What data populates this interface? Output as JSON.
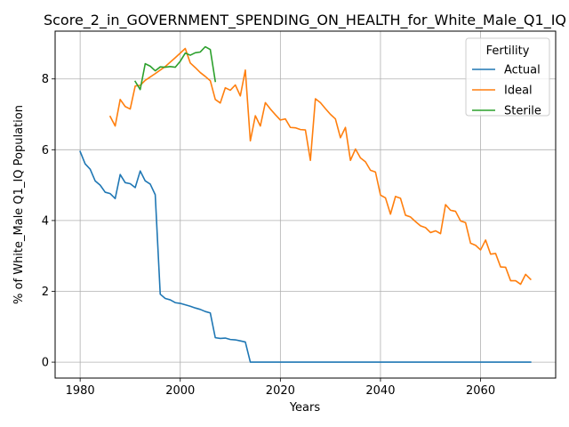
{
  "chart_data": {
    "type": "line",
    "title": "Score_2_in_GOVERNMENT_SPENDING_ON_HEALTH_for_White_Male_Q1_IQ",
    "xlabel": "Years",
    "ylabel": "% of White_Male Q1_IQ Population",
    "xlim": [
      1975,
      2075
    ],
    "ylim": [
      -0.45,
      9.35
    ],
    "xticks": [
      1980,
      2000,
      2020,
      2040,
      2060
    ],
    "yticks": [
      0,
      2,
      4,
      6,
      8
    ],
    "grid": true,
    "legend": {
      "title": "Fertility",
      "placement": "top-right"
    },
    "series": [
      {
        "name": "Actual",
        "color": "#1f77b4",
        "points": [
          [
            1980,
            5.95
          ],
          [
            1981,
            5.6
          ],
          [
            1982,
            5.45
          ],
          [
            1983,
            5.12
          ],
          [
            1984,
            5.0
          ],
          [
            1985,
            4.8
          ],
          [
            1986,
            4.76
          ],
          [
            1987,
            4.62
          ],
          [
            1988,
            5.3
          ],
          [
            1989,
            5.07
          ],
          [
            1990,
            5.04
          ],
          [
            1991,
            4.93
          ],
          [
            1992,
            5.4
          ],
          [
            1993,
            5.12
          ],
          [
            1994,
            5.03
          ],
          [
            1995,
            4.73
          ],
          [
            1996,
            1.92
          ],
          [
            1997,
            1.8
          ],
          [
            1998,
            1.76
          ],
          [
            1999,
            1.68
          ],
          [
            2000,
            1.66
          ],
          [
            2001,
            1.62
          ],
          [
            2002,
            1.58
          ],
          [
            2003,
            1.53
          ],
          [
            2004,
            1.49
          ],
          [
            2005,
            1.43
          ],
          [
            2006,
            1.39
          ],
          [
            2007,
            0.69
          ],
          [
            2008,
            0.67
          ],
          [
            2009,
            0.68
          ],
          [
            2010,
            0.64
          ],
          [
            2011,
            0.63
          ],
          [
            2012,
            0.6
          ],
          [
            2013,
            0.57
          ],
          [
            2014,
            0.0
          ],
          [
            2020,
            0.0
          ],
          [
            2030,
            0.0
          ],
          [
            2040,
            0.0
          ],
          [
            2050,
            0.0
          ],
          [
            2060,
            0.0
          ],
          [
            2070,
            0.0
          ]
        ]
      },
      {
        "name": "Ideal",
        "color": "#ff7f0e",
        "points": [
          [
            1986,
            6.94
          ],
          [
            1987,
            6.67
          ],
          [
            1988,
            7.42
          ],
          [
            1989,
            7.22
          ],
          [
            1990,
            7.15
          ],
          [
            1991,
            7.8
          ],
          [
            1992,
            7.82
          ],
          [
            1993,
            7.96
          ],
          [
            1995,
            8.15
          ],
          [
            1997,
            8.35
          ],
          [
            1999,
            8.6
          ],
          [
            2001,
            8.86
          ],
          [
            2002,
            8.45
          ],
          [
            2003,
            8.32
          ],
          [
            2004,
            8.18
          ],
          [
            2005,
            8.07
          ],
          [
            2006,
            7.95
          ],
          [
            2007,
            7.42
          ],
          [
            2008,
            7.32
          ],
          [
            2009,
            7.75
          ],
          [
            2010,
            7.68
          ],
          [
            2011,
            7.83
          ],
          [
            2012,
            7.52
          ],
          [
            2013,
            8.25
          ],
          [
            2014,
            6.25
          ],
          [
            2015,
            6.96
          ],
          [
            2016,
            6.67
          ],
          [
            2017,
            7.33
          ],
          [
            2018,
            7.15
          ],
          [
            2019,
            6.99
          ],
          [
            2020,
            6.84
          ],
          [
            2021,
            6.87
          ],
          [
            2022,
            6.63
          ],
          [
            2023,
            6.62
          ],
          [
            2024,
            6.57
          ],
          [
            2025,
            6.56
          ],
          [
            2026,
            5.7
          ],
          [
            2027,
            7.44
          ],
          [
            2028,
            7.33
          ],
          [
            2029,
            7.16
          ],
          [
            2030,
            7.0
          ],
          [
            2031,
            6.87
          ],
          [
            2032,
            6.34
          ],
          [
            2033,
            6.63
          ],
          [
            2034,
            5.7
          ],
          [
            2035,
            6.02
          ],
          [
            2036,
            5.77
          ],
          [
            2037,
            5.66
          ],
          [
            2038,
            5.42
          ],
          [
            2039,
            5.37
          ],
          [
            2040,
            4.72
          ],
          [
            2041,
            4.64
          ],
          [
            2042,
            4.18
          ],
          [
            2043,
            4.68
          ],
          [
            2044,
            4.63
          ],
          [
            2045,
            4.15
          ],
          [
            2046,
            4.1
          ],
          [
            2047,
            3.97
          ],
          [
            2048,
            3.85
          ],
          [
            2049,
            3.8
          ],
          [
            2050,
            3.66
          ],
          [
            2051,
            3.71
          ],
          [
            2052,
            3.63
          ],
          [
            2053,
            4.45
          ],
          [
            2054,
            4.29
          ],
          [
            2055,
            4.26
          ],
          [
            2056,
            3.99
          ],
          [
            2057,
            3.94
          ],
          [
            2058,
            3.36
          ],
          [
            2059,
            3.3
          ],
          [
            2060,
            3.17
          ],
          [
            2061,
            3.45
          ],
          [
            2062,
            3.05
          ],
          [
            2063,
            3.07
          ],
          [
            2064,
            2.69
          ],
          [
            2065,
            2.68
          ],
          [
            2066,
            2.3
          ],
          [
            2067,
            2.3
          ],
          [
            2068,
            2.2
          ],
          [
            2069,
            2.48
          ],
          [
            2070,
            2.34
          ]
        ]
      },
      {
        "name": "Sterile",
        "color": "#2ca02c",
        "points": [
          [
            1991,
            7.93
          ],
          [
            1992,
            7.7
          ],
          [
            1993,
            8.43
          ],
          [
            1994,
            8.36
          ],
          [
            1995,
            8.23
          ],
          [
            1996,
            8.34
          ],
          [
            1997,
            8.33
          ],
          [
            1998,
            8.35
          ],
          [
            1999,
            8.33
          ],
          [
            2000,
            8.5
          ],
          [
            2001,
            8.73
          ],
          [
            2002,
            8.67
          ],
          [
            2003,
            8.74
          ],
          [
            2004,
            8.76
          ],
          [
            2005,
            8.91
          ],
          [
            2006,
            8.83
          ],
          [
            2007,
            7.93
          ]
        ]
      }
    ]
  }
}
